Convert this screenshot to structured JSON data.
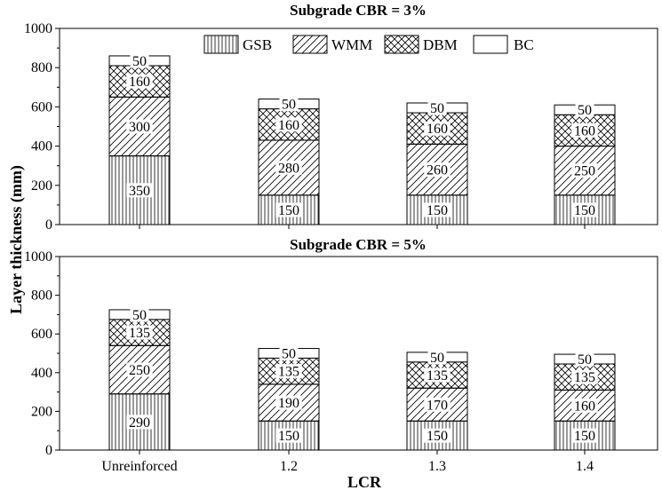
{
  "chart_data": [
    {
      "type": "bar",
      "stacked": true,
      "title": "Subgrade CBR = 3%",
      "ylabel": "Layer thickness (mm)",
      "xlabel": "",
      "ylim": [
        0,
        1000
      ],
      "yticks": [
        0,
        200,
        400,
        600,
        800,
        1000
      ],
      "categories": [
        "Unreinforced",
        "1.2",
        "1.3",
        "1.4"
      ],
      "legend": "top",
      "series": [
        {
          "name": "GSB",
          "pattern": "vertical-lines",
          "values": [
            350,
            150,
            150,
            150
          ]
        },
        {
          "name": "WMM",
          "pattern": "diagonal-lines",
          "values": [
            300,
            280,
            260,
            250
          ]
        },
        {
          "name": "DBM",
          "pattern": "cross-hatch",
          "values": [
            160,
            160,
            160,
            160
          ]
        },
        {
          "name": "BC",
          "pattern": "blank",
          "values": [
            50,
            50,
            50,
            50
          ]
        }
      ]
    },
    {
      "type": "bar",
      "stacked": true,
      "title": "Subgrade CBR = 5%",
      "ylabel": "Layer thickness (mm)",
      "xlabel": "LCR",
      "ylim": [
        0,
        1000
      ],
      "yticks": [
        0,
        200,
        400,
        600,
        800,
        1000
      ],
      "categories": [
        "Unreinforced",
        "1.2",
        "1.3",
        "1.4"
      ],
      "series": [
        {
          "name": "GSB",
          "pattern": "vertical-lines",
          "values": [
            290,
            150,
            150,
            150
          ]
        },
        {
          "name": "WMM",
          "pattern": "diagonal-lines",
          "values": [
            250,
            190,
            170,
            160
          ]
        },
        {
          "name": "DBM",
          "pattern": "cross-hatch",
          "values": [
            135,
            135,
            135,
            135
          ]
        },
        {
          "name": "BC",
          "pattern": "blank",
          "values": [
            50,
            50,
            50,
            50
          ]
        }
      ]
    }
  ]
}
